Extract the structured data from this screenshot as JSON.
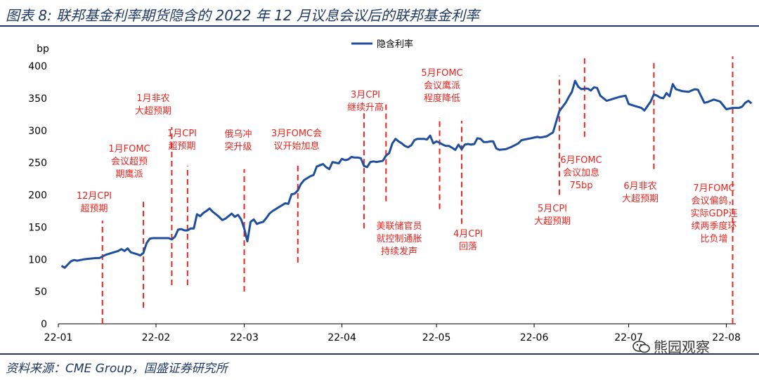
{
  "header": {
    "title": "图表 8:  联邦基金利率期货隐含的 2022 年 12 月议息会议后的联邦基金利率"
  },
  "footer": {
    "source": "资料来源：CME Group，国盛证券研究所",
    "watermark": "熊园观察"
  },
  "colors": {
    "line": "#1f4e9c",
    "annotation": "#e8251f",
    "title": "#1f3864"
  },
  "chart_data": {
    "type": "line",
    "ylabel": "bp",
    "ylim": [
      0,
      400
    ],
    "yticks": [
      0,
      50,
      100,
      150,
      200,
      250,
      300,
      350,
      400
    ],
    "xlim": [
      0,
      215
    ],
    "xticks": [
      {
        "label": "22-01",
        "x": 0
      },
      {
        "label": "22-02",
        "x": 31
      },
      {
        "label": "22-03",
        "x": 59
      },
      {
        "label": "22-04",
        "x": 90
      },
      {
        "label": "22-05",
        "x": 120
      },
      {
        "label": "22-06",
        "x": 151
      },
      {
        "label": "22-07",
        "x": 181
      },
      {
        "label": "22-08",
        "x": 212
      }
    ],
    "legend": {
      "position": "top-center"
    },
    "series": [
      {
        "name": "隐含利率",
        "points": [
          [
            1,
            90
          ],
          [
            2,
            87
          ],
          [
            4,
            97
          ],
          [
            5,
            99
          ],
          [
            6,
            98
          ],
          [
            8,
            100
          ],
          [
            10,
            101
          ],
          [
            12,
            102
          ],
          [
            13,
            102
          ],
          [
            15,
            107
          ],
          [
            17,
            110
          ],
          [
            19,
            113
          ],
          [
            20,
            116
          ],
          [
            21,
            113
          ],
          [
            22,
            117
          ],
          [
            23,
            111
          ],
          [
            25,
            108
          ],
          [
            26,
            106
          ],
          [
            27,
            110
          ],
          [
            28,
            125
          ],
          [
            29,
            132
          ],
          [
            30,
            133
          ],
          [
            32,
            133
          ],
          [
            33,
            133
          ],
          [
            35,
            133
          ],
          [
            36,
            131
          ],
          [
            37,
            135
          ],
          [
            38,
            146
          ],
          [
            39,
            147
          ],
          [
            40,
            145
          ],
          [
            41,
            145
          ],
          [
            42,
            148
          ],
          [
            43,
            148
          ],
          [
            44,
            170
          ],
          [
            45,
            167
          ],
          [
            46,
            172
          ],
          [
            47,
            175
          ],
          [
            48,
            179
          ],
          [
            49,
            174
          ],
          [
            50,
            170
          ],
          [
            51,
            166
          ],
          [
            52,
            161
          ],
          [
            53,
            163
          ],
          [
            54,
            167
          ],
          [
            55,
            171
          ],
          [
            56,
            166
          ],
          [
            57,
            169
          ],
          [
            58,
            162
          ],
          [
            59,
            148
          ],
          [
            60,
            128
          ],
          [
            61,
            158
          ],
          [
            62,
            162
          ],
          [
            63,
            155
          ],
          [
            64,
            157
          ],
          [
            65,
            158
          ],
          [
            66,
            164
          ],
          [
            67,
            171
          ],
          [
            68,
            175
          ],
          [
            69,
            178
          ],
          [
            70,
            181
          ],
          [
            71,
            184
          ],
          [
            72,
            187
          ],
          [
            73,
            186
          ],
          [
            74,
            201
          ],
          [
            75,
            202
          ],
          [
            76,
            207
          ],
          [
            77,
            217
          ],
          [
            78,
            223
          ],
          [
            79,
            226
          ],
          [
            80,
            229
          ],
          [
            81,
            231
          ],
          [
            82,
            244
          ],
          [
            83,
            246
          ],
          [
            84,
            248
          ],
          [
            85,
            243
          ],
          [
            86,
            240
          ],
          [
            87,
            251
          ],
          [
            88,
            250
          ],
          [
            89,
            249
          ],
          [
            90,
            256
          ],
          [
            91,
            254
          ],
          [
            92,
            255
          ],
          [
            93,
            259
          ],
          [
            94,
            258
          ],
          [
            95,
            258
          ],
          [
            96,
            257
          ],
          [
            97,
            245
          ],
          [
            98,
            243
          ],
          [
            99,
            251
          ],
          [
            100,
            252
          ],
          [
            101,
            251
          ],
          [
            102,
            252
          ],
          [
            103,
            253
          ],
          [
            104,
            261
          ],
          [
            105,
            265
          ],
          [
            106,
            280
          ],
          [
            107,
            287
          ],
          [
            108,
            283
          ],
          [
            109,
            280
          ],
          [
            110,
            276
          ],
          [
            111,
            274
          ],
          [
            112,
            277
          ],
          [
            113,
            285
          ],
          [
            114,
            287
          ],
          [
            115,
            287
          ],
          [
            116,
            287
          ],
          [
            117,
            286
          ],
          [
            118,
            292
          ],
          [
            119,
            280
          ],
          [
            120,
            283
          ],
          [
            121,
            281
          ],
          [
            122,
            278
          ],
          [
            123,
            276
          ],
          [
            124,
            276
          ],
          [
            125,
            273
          ],
          [
            126,
            270
          ],
          [
            127,
            278
          ],
          [
            128,
            271
          ],
          [
            129,
            278
          ],
          [
            130,
            279
          ],
          [
            131,
            278
          ],
          [
            132,
            279
          ],
          [
            133,
            288
          ],
          [
            134,
            287
          ],
          [
            135,
            282
          ],
          [
            136,
            282
          ],
          [
            137,
            283
          ],
          [
            138,
            283
          ],
          [
            139,
            272
          ],
          [
            140,
            270
          ],
          [
            142,
            271
          ],
          [
            144,
            275
          ],
          [
            146,
            280
          ],
          [
            147,
            285
          ],
          [
            148,
            286
          ],
          [
            150,
            288
          ],
          [
            152,
            290
          ],
          [
            153,
            289
          ],
          [
            155,
            291
          ],
          [
            157,
            297
          ],
          [
            159,
            330
          ],
          [
            161,
            343
          ],
          [
            162,
            352
          ],
          [
            163,
            360
          ],
          [
            164,
            377
          ],
          [
            165,
            368
          ],
          [
            166,
            364
          ],
          [
            167,
            365
          ],
          [
            168,
            365
          ],
          [
            169,
            362
          ],
          [
            170,
            367
          ],
          [
            171,
            366
          ],
          [
            172,
            354
          ],
          [
            173,
            350
          ],
          [
            174,
            346
          ],
          [
            176,
            349
          ],
          [
            178,
            352
          ],
          [
            180,
            354
          ],
          [
            181,
            341
          ],
          [
            183,
            338
          ],
          [
            185,
            335
          ],
          [
            186,
            331
          ],
          [
            187,
            338
          ],
          [
            188,
            345
          ],
          [
            189,
            356
          ],
          [
            190,
            354
          ],
          [
            191,
            351
          ],
          [
            192,
            350
          ],
          [
            193,
            358
          ],
          [
            194,
            353
          ],
          [
            195,
            372
          ],
          [
            196,
            364
          ],
          [
            198,
            361
          ],
          [
            200,
            360
          ],
          [
            202,
            364
          ],
          [
            203,
            363
          ],
          [
            205,
            343
          ],
          [
            206,
            344
          ],
          [
            208,
            348
          ],
          [
            210,
            345
          ],
          [
            212,
            333
          ],
          [
            214,
            335
          ],
          [
            216,
            335
          ],
          [
            217,
            337
          ],
          [
            218,
            343
          ],
          [
            219,
            346
          ],
          [
            220,
            342
          ]
        ]
      }
    ],
    "annotations": [
      {
        "text": [
          "12月CPI",
          "超预期"
        ],
        "x": 14,
        "ymin": 0,
        "ymax": 160
      },
      {
        "text": [
          "1月FOMC",
          "会议超预",
          "期鹰派"
        ],
        "x": 27,
        "ymin": 25,
        "ymax": 190
      },
      {
        "text": [
          "1月非农",
          "大超预期"
        ],
        "x": 36,
        "ymin": 60,
        "ymax": 305
      },
      {
        "text": [
          "1月CPI",
          "超预期"
        ],
        "x": 41,
        "ymin": 60,
        "ymax": 245
      },
      {
        "text": [
          "俄乌冲",
          "突升级"
        ],
        "x": 59,
        "ymin": 50,
        "ymax": 240
      },
      {
        "text": [
          "3月FOMC会",
          "议开始加息"
        ],
        "x": 76,
        "ymin": 95,
        "ymax": 250
      },
      {
        "text": [
          "3月CPI",
          "继续升高"
        ],
        "x": 97,
        "ymin": 148,
        "ymax": 330
      },
      {
        "text": [
          "美联储官员",
          "就控制通胀",
          "持续发声"
        ],
        "x": 104,
        "ymin": 190,
        "ymax": 345
      },
      {
        "text": [
          "5月FOMC",
          "会议鹰派",
          "程度降低"
        ],
        "x": 121,
        "ymin": 178,
        "ymax": 320
      },
      {
        "text": [
          "4月CPI",
          "回落"
        ],
        "x": 128,
        "ymin": 155,
        "ymax": 315
      },
      {
        "text": [
          "5月CPI",
          "大超预期"
        ],
        "x": 159,
        "ymin": 200,
        "ymax": 385
      },
      {
        "text": [
          "6月FOMC",
          "会议加息",
          "75bp"
        ],
        "x": 167,
        "ymin": 290,
        "ymax": 415
      },
      {
        "text": [
          "6月非农",
          "大超预期"
        ],
        "x": 189,
        "ymin": 240,
        "ymax": 405
      },
      {
        "text": [
          "7月FOMC",
          "会议偏鸽，",
          "实际GDP连",
          "续两季度环",
          "比负增"
        ],
        "x": 214,
        "ymin": 0,
        "ymax": 415
      }
    ]
  }
}
